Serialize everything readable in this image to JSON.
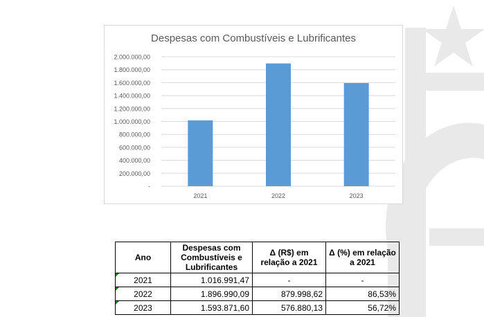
{
  "chart_data": {
    "type": "bar",
    "title": "Despesas com Combustíveis e Lubrificantes",
    "categories": [
      "2021",
      "2022",
      "2023"
    ],
    "values": [
      1016991.47,
      1896990.09,
      1593871.6
    ],
    "ylim": [
      0,
      2000000
    ],
    "yticks": [
      "-",
      "200.000,00",
      "400.000,00",
      "600.000,00",
      "800.000,00",
      "1.000.000,00",
      "1.200.000,00",
      "1.400.000,00",
      "1.600.000,00",
      "1.800.000,00",
      "2.000.000,00"
    ],
    "grid": true,
    "legend": "none",
    "bar_color": "#5b9bd5"
  },
  "table": {
    "headers": [
      "Ano",
      "Despesas com Combustíveis e Lubrificantes",
      "Δ (R$) em relação a 2021",
      "Δ (%) em relação a 2021"
    ],
    "rows": [
      [
        "2021",
        "1.016.991,47",
        "-",
        "-"
      ],
      [
        "2022",
        "1.896.990,09",
        "879.998,62",
        "86,53%"
      ],
      [
        "2023",
        "1.593.871,60",
        "576.880,13",
        "56,72%"
      ]
    ]
  }
}
